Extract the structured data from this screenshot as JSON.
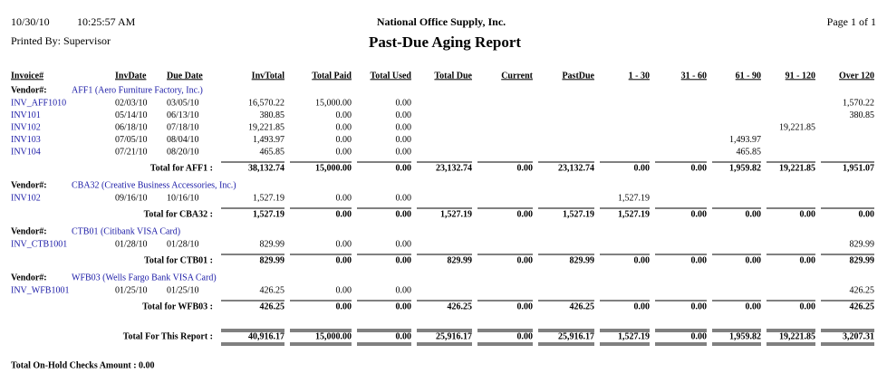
{
  "header": {
    "date": "10/30/10",
    "time": "10:25:57 AM",
    "company": "National Office Supply, Inc.",
    "page": "Page 1 of 1",
    "printed_by": "Printed By: Supervisor",
    "title": "Past-Due Aging Report"
  },
  "columns": [
    "Invoice#",
    "InvDate",
    "Due Date",
    "InvTotal",
    "Total Paid",
    "Total Used",
    "Total Due",
    "Current",
    "PastDue",
    "1 - 30",
    "31 - 60",
    "61 - 90",
    "91 - 120",
    "Over 120"
  ],
  "vendor_label": "Vendor#:",
  "vendors": [
    {
      "name": "AFF1 (Aero Furniture Factory, Inc.)",
      "rows": [
        [
          "INV_AFF1010",
          "02/03/10",
          "03/05/10",
          "16,570.22",
          "15,000.00",
          "0.00",
          null,
          null,
          null,
          null,
          null,
          null,
          null,
          "1,570.22"
        ],
        [
          "INV101",
          "05/14/10",
          "06/13/10",
          "380.85",
          "0.00",
          "0.00",
          null,
          null,
          null,
          null,
          null,
          null,
          null,
          "380.85"
        ],
        [
          "INV102",
          "06/18/10",
          "07/18/10",
          "19,221.85",
          "0.00",
          "0.00",
          null,
          null,
          null,
          null,
          null,
          null,
          "19,221.85",
          null
        ],
        [
          "INV103",
          "07/05/10",
          "08/04/10",
          "1,493.97",
          "0.00",
          "0.00",
          null,
          null,
          null,
          null,
          null,
          "1,493.97",
          null,
          null
        ],
        [
          "INV104",
          "07/21/10",
          "08/20/10",
          "465.85",
          "0.00",
          "0.00",
          null,
          null,
          null,
          null,
          null,
          "465.85",
          null,
          null
        ]
      ],
      "total_label": "Total for AFF1 :",
      "totals": [
        "38,132.74",
        "15,000.00",
        "0.00",
        "23,132.74",
        "0.00",
        "23,132.74",
        "0.00",
        "0.00",
        "1,959.82",
        "19,221.85",
        "1,951.07"
      ]
    },
    {
      "name": "CBA32 (Creative Business Accessories, Inc.)",
      "rows": [
        [
          "INV102",
          "09/16/10",
          "10/16/10",
          "1,527.19",
          "0.00",
          "0.00",
          null,
          null,
          null,
          "1,527.19",
          null,
          null,
          null,
          null
        ]
      ],
      "total_label": "Total for CBA32 :",
      "totals": [
        "1,527.19",
        "0.00",
        "0.00",
        "1,527.19",
        "0.00",
        "1,527.19",
        "1,527.19",
        "0.00",
        "0.00",
        "0.00",
        "0.00"
      ]
    },
    {
      "name": "CTB01 (Citibank VISA Card)",
      "rows": [
        [
          "INV_CTB1001",
          "01/28/10",
          "01/28/10",
          "829.99",
          "0.00",
          "0.00",
          null,
          null,
          null,
          null,
          null,
          null,
          null,
          "829.99"
        ]
      ],
      "total_label": "Total for CTB01 :",
      "totals": [
        "829.99",
        "0.00",
        "0.00",
        "829.99",
        "0.00",
        "829.99",
        "0.00",
        "0.00",
        "0.00",
        "0.00",
        "829.99"
      ]
    },
    {
      "name": "WFB03 (Wells Fargo Bank VISA Card)",
      "rows": [
        [
          "INV_WFB1001",
          "01/25/10",
          "01/25/10",
          "426.25",
          "0.00",
          "0.00",
          null,
          null,
          null,
          null,
          null,
          null,
          null,
          "426.25"
        ]
      ],
      "total_label": "Total for WFB03 :",
      "totals": [
        "426.25",
        "0.00",
        "0.00",
        "426.25",
        "0.00",
        "426.25",
        "0.00",
        "0.00",
        "0.00",
        "0.00",
        "426.25"
      ]
    }
  ],
  "grand_total": {
    "label": "Total For This Report :",
    "totals": [
      "40,916.17",
      "15,000.00",
      "0.00",
      "25,916.17",
      "0.00",
      "25,916.17",
      "1,527.19",
      "0.00",
      "1,959.82",
      "19,221.85",
      "3,207.31"
    ]
  },
  "footer": "Total On-Hold Checks Amount : 0.00"
}
